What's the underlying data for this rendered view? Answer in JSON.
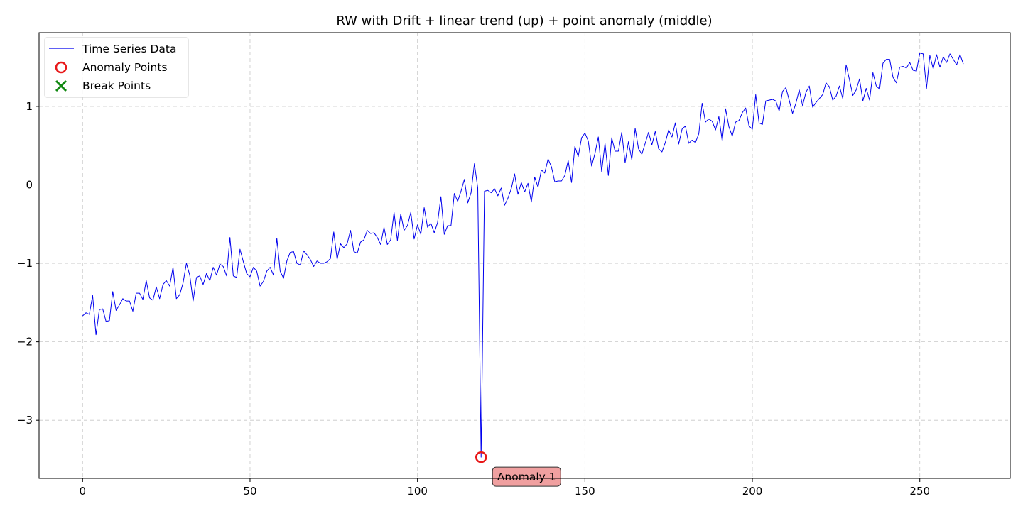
{
  "chart_data": {
    "type": "line",
    "title": "RW with Drift + linear trend (up) + point anomaly (middle)",
    "xlabel": "",
    "ylabel": "",
    "xlim": [
      -13,
      277
    ],
    "ylim": [
      -3.74,
      1.94
    ],
    "x_ticks": [
      0,
      50,
      100,
      150,
      200,
      250
    ],
    "y_ticks": [
      -3,
      -2,
      -1,
      0,
      1
    ],
    "y_tick_labels": [
      "−3",
      "−2",
      "−1",
      "0",
      "1"
    ],
    "grid": true,
    "legend_position": "top-left",
    "legend": {
      "series_label": "Time Series Data",
      "anomaly_label": "Anomaly Points",
      "break_label": "Break Points"
    },
    "colors": {
      "series": "#0000ee",
      "anomaly": "#e8191a",
      "break": "#118811",
      "annotation_fill": "#f0a0a0"
    },
    "series": [
      {
        "name": "Time Series Data",
        "x_start": 0,
        "values": [
          -1.67,
          -1.63,
          -1.65,
          -1.41,
          -1.91,
          -1.59,
          -1.58,
          -1.74,
          -1.73,
          -1.36,
          -1.6,
          -1.53,
          -1.45,
          -1.48,
          -1.48,
          -1.61,
          -1.38,
          -1.38,
          -1.46,
          -1.22,
          -1.44,
          -1.47,
          -1.3,
          -1.45,
          -1.27,
          -1.22,
          -1.29,
          -1.05,
          -1.45,
          -1.4,
          -1.25,
          -1.0,
          -1.15,
          -1.48,
          -1.18,
          -1.16,
          -1.27,
          -1.13,
          -1.22,
          -1.05,
          -1.15,
          -1.01,
          -1.04,
          -1.16,
          -0.67,
          -1.16,
          -1.18,
          -0.82,
          -0.98,
          -1.13,
          -1.17,
          -1.05,
          -1.1,
          -1.29,
          -1.23,
          -1.1,
          -1.05,
          -1.15,
          -0.68,
          -1.1,
          -1.19,
          -0.97,
          -0.86,
          -0.85,
          -1.0,
          -1.02,
          -0.84,
          -0.89,
          -0.95,
          -1.04,
          -0.97,
          -1.0,
          -1.0,
          -0.98,
          -0.94,
          -0.6,
          -0.95,
          -0.75,
          -0.8,
          -0.75,
          -0.58,
          -0.85,
          -0.87,
          -0.73,
          -0.7,
          -0.58,
          -0.62,
          -0.61,
          -0.67,
          -0.76,
          -0.54,
          -0.76,
          -0.7,
          -0.35,
          -0.71,
          -0.37,
          -0.58,
          -0.52,
          -0.35,
          -0.69,
          -0.51,
          -0.63,
          -0.29,
          -0.54,
          -0.49,
          -0.61,
          -0.48,
          -0.15,
          -0.63,
          -0.52,
          -0.52,
          -0.11,
          -0.21,
          -0.08,
          0.07,
          -0.23,
          -0.1,
          0.27,
          -0.04,
          -3.47,
          -0.08,
          -0.07,
          -0.1,
          -0.05,
          -0.14,
          -0.04,
          -0.26,
          -0.17,
          -0.05,
          0.14,
          -0.12,
          0.03,
          -0.09,
          0.02,
          -0.22,
          0.1,
          -0.03,
          0.19,
          0.15,
          0.33,
          0.23,
          0.04,
          0.05,
          0.05,
          0.12,
          0.31,
          0.03,
          0.49,
          0.36,
          0.6,
          0.66,
          0.56,
          0.24,
          0.4,
          0.61,
          0.17,
          0.53,
          0.12,
          0.6,
          0.43,
          0.43,
          0.67,
          0.28,
          0.55,
          0.32,
          0.72,
          0.46,
          0.39,
          0.53,
          0.67,
          0.51,
          0.68,
          0.46,
          0.42,
          0.54,
          0.7,
          0.61,
          0.79,
          0.52,
          0.71,
          0.75,
          0.53,
          0.57,
          0.54,
          0.65,
          1.04,
          0.8,
          0.84,
          0.81,
          0.7,
          0.87,
          0.56,
          0.97,
          0.74,
          0.62,
          0.8,
          0.82,
          0.92,
          0.98,
          0.75,
          0.71,
          1.15,
          0.79,
          0.77,
          1.07,
          1.08,
          1.09,
          1.07,
          0.94,
          1.19,
          1.24,
          1.08,
          0.91,
          1.04,
          1.21,
          1.01,
          1.18,
          1.26,
          0.99,
          1.05,
          1.1,
          1.15,
          1.3,
          1.25,
          1.08,
          1.13,
          1.26,
          1.1,
          1.53,
          1.34,
          1.14,
          1.21,
          1.35,
          1.07,
          1.23,
          1.08,
          1.43,
          1.26,
          1.22,
          1.55,
          1.6,
          1.6,
          1.37,
          1.3,
          1.5,
          1.51,
          1.49,
          1.56,
          1.46,
          1.45,
          1.68,
          1.67,
          1.23,
          1.65,
          1.48,
          1.66,
          1.5,
          1.63,
          1.56,
          1.67,
          1.6,
          1.53,
          1.66,
          1.54
        ]
      }
    ],
    "anomaly_points": [
      {
        "x": 119,
        "y": -3.47,
        "label": "Anomaly 1"
      }
    ],
    "break_points": []
  }
}
